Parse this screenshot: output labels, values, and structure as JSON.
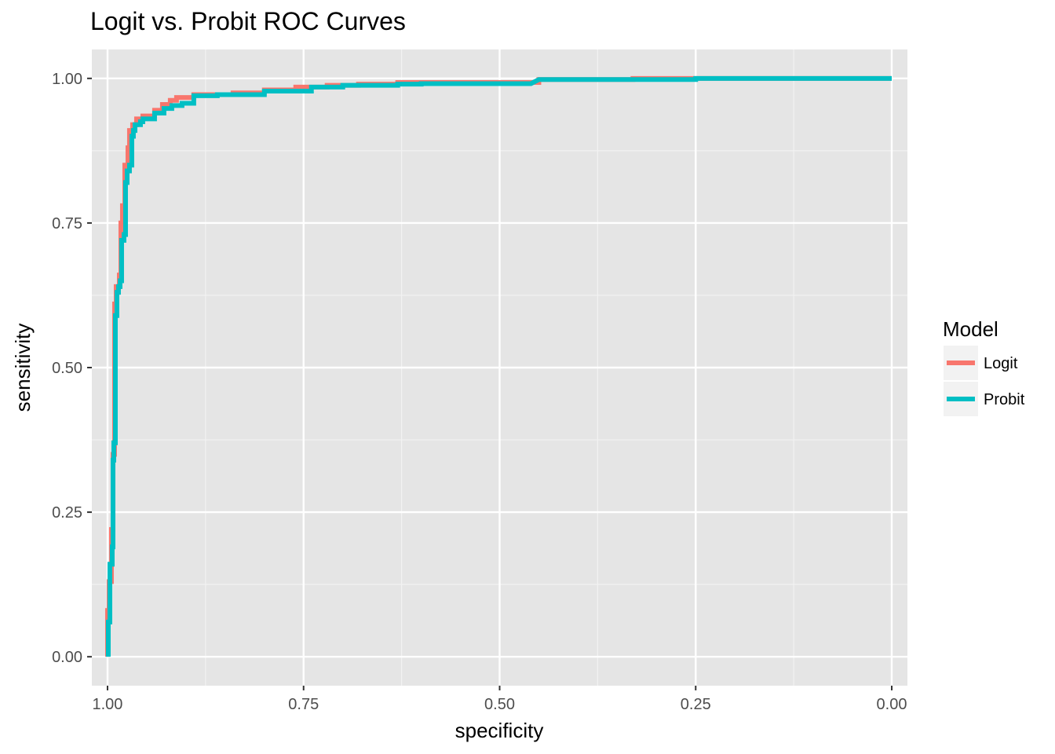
{
  "chart_data": {
    "type": "line",
    "title": "Logit vs. Probit ROC Curves",
    "xlabel": "specificity",
    "ylabel": "sensitivity",
    "xlim": [
      1.02,
      -0.02
    ],
    "ylim": [
      -0.05,
      1.05
    ],
    "x_reversed": true,
    "x_ticks": [
      1.0,
      0.75,
      0.5,
      0.25,
      0.0
    ],
    "x_tick_labels": [
      "1.00",
      "0.75",
      "0.50",
      "0.25",
      "0.00"
    ],
    "y_ticks": [
      0.0,
      0.25,
      0.5,
      0.75,
      1.0
    ],
    "y_tick_labels": [
      "0.00",
      "0.25",
      "0.50",
      "0.75",
      "1.00"
    ],
    "grid": true,
    "legend": {
      "title": "Model",
      "placement": "right"
    },
    "series": [
      {
        "name": "Logit",
        "color": "#F8766D",
        "points": [
          [
            1.0,
            0.0
          ],
          [
            1.0,
            0.08
          ],
          [
            0.998,
            0.08
          ],
          [
            0.998,
            0.13
          ],
          [
            0.995,
            0.13
          ],
          [
            0.995,
            0.22
          ],
          [
            0.993,
            0.22
          ],
          [
            0.993,
            0.35
          ],
          [
            0.991,
            0.35
          ],
          [
            0.991,
            0.61
          ],
          [
            0.989,
            0.61
          ],
          [
            0.989,
            0.64
          ],
          [
            0.985,
            0.64
          ],
          [
            0.985,
            0.66
          ],
          [
            0.983,
            0.66
          ],
          [
            0.983,
            0.75
          ],
          [
            0.981,
            0.75
          ],
          [
            0.981,
            0.78
          ],
          [
            0.978,
            0.78
          ],
          [
            0.978,
            0.85
          ],
          [
            0.974,
            0.85
          ],
          [
            0.974,
            0.88
          ],
          [
            0.972,
            0.88
          ],
          [
            0.972,
            0.91
          ],
          [
            0.968,
            0.91
          ],
          [
            0.968,
            0.92
          ],
          [
            0.963,
            0.92
          ],
          [
            0.963,
            0.93
          ],
          [
            0.955,
            0.93
          ],
          [
            0.955,
            0.935
          ],
          [
            0.94,
            0.935
          ],
          [
            0.94,
            0.945
          ],
          [
            0.93,
            0.945
          ],
          [
            0.93,
            0.955
          ],
          [
            0.92,
            0.955
          ],
          [
            0.92,
            0.962
          ],
          [
            0.912,
            0.962
          ],
          [
            0.912,
            0.967
          ],
          [
            0.89,
            0.967
          ],
          [
            0.89,
            0.972
          ],
          [
            0.84,
            0.972
          ],
          [
            0.84,
            0.975
          ],
          [
            0.8,
            0.975
          ],
          [
            0.8,
            0.98
          ],
          [
            0.76,
            0.98
          ],
          [
            0.76,
            0.985
          ],
          [
            0.72,
            0.985
          ],
          [
            0.72,
            0.988
          ],
          [
            0.68,
            0.988
          ],
          [
            0.68,
            0.99
          ],
          [
            0.63,
            0.99
          ],
          [
            0.63,
            0.993
          ],
          [
            0.55,
            0.993
          ],
          [
            0.45,
            0.993
          ],
          [
            0.45,
            0.998
          ],
          [
            0.33,
            0.998
          ],
          [
            0.33,
            1.0
          ],
          [
            0.0,
            1.0
          ]
        ]
      },
      {
        "name": "Probit",
        "color": "#00BFC4",
        "points": [
          [
            0.999,
            0.0
          ],
          [
            0.999,
            0.06
          ],
          [
            0.997,
            0.06
          ],
          [
            0.997,
            0.16
          ],
          [
            0.994,
            0.16
          ],
          [
            0.994,
            0.19
          ],
          [
            0.993,
            0.19
          ],
          [
            0.993,
            0.34
          ],
          [
            0.992,
            0.34
          ],
          [
            0.992,
            0.37
          ],
          [
            0.99,
            0.37
          ],
          [
            0.99,
            0.59
          ],
          [
            0.988,
            0.59
          ],
          [
            0.988,
            0.63
          ],
          [
            0.986,
            0.63
          ],
          [
            0.986,
            0.64
          ],
          [
            0.984,
            0.64
          ],
          [
            0.984,
            0.65
          ],
          [
            0.982,
            0.65
          ],
          [
            0.982,
            0.72
          ],
          [
            0.979,
            0.72
          ],
          [
            0.979,
            0.73
          ],
          [
            0.977,
            0.73
          ],
          [
            0.977,
            0.82
          ],
          [
            0.975,
            0.82
          ],
          [
            0.975,
            0.84
          ],
          [
            0.972,
            0.84
          ],
          [
            0.972,
            0.85
          ],
          [
            0.969,
            0.85
          ],
          [
            0.969,
            0.9
          ],
          [
            0.967,
            0.9
          ],
          [
            0.967,
            0.91
          ],
          [
            0.965,
            0.91
          ],
          [
            0.965,
            0.92
          ],
          [
            0.958,
            0.92
          ],
          [
            0.958,
            0.925
          ],
          [
            0.955,
            0.925
          ],
          [
            0.955,
            0.93
          ],
          [
            0.94,
            0.93
          ],
          [
            0.94,
            0.94
          ],
          [
            0.928,
            0.94
          ],
          [
            0.928,
            0.948
          ],
          [
            0.918,
            0.948
          ],
          [
            0.918,
            0.953
          ],
          [
            0.905,
            0.953
          ],
          [
            0.905,
            0.957
          ],
          [
            0.89,
            0.957
          ],
          [
            0.89,
            0.97
          ],
          [
            0.86,
            0.97
          ],
          [
            0.86,
            0.972
          ],
          [
            0.8,
            0.972
          ],
          [
            0.8,
            0.978
          ],
          [
            0.74,
            0.978
          ],
          [
            0.74,
            0.985
          ],
          [
            0.7,
            0.985
          ],
          [
            0.7,
            0.988
          ],
          [
            0.63,
            0.988
          ],
          [
            0.63,
            0.99
          ],
          [
            0.6,
            0.99
          ],
          [
            0.6,
            0.991
          ],
          [
            0.46,
            0.991
          ],
          [
            0.45,
            0.998
          ],
          [
            0.25,
            0.998
          ],
          [
            0.25,
            1.0
          ],
          [
            0.0,
            1.0
          ]
        ]
      }
    ]
  }
}
